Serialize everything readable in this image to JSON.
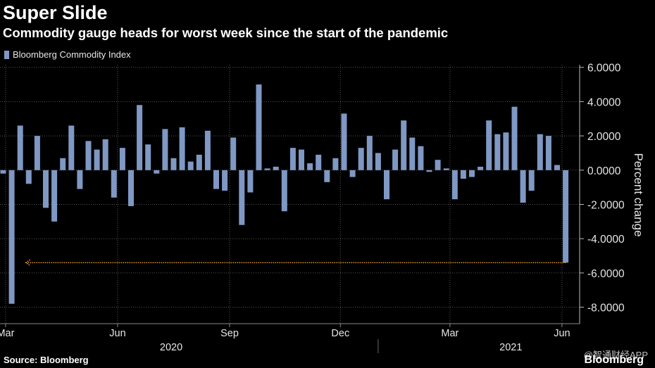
{
  "header": {
    "title": "Super Slide",
    "subtitle": "Commodity gauge heads for worst week since the start of the pandemic"
  },
  "footer": {
    "source": "Source: Bloomberg",
    "brand": "Bloomberg",
    "watermark": "@智通财经APP"
  },
  "colors": {
    "bar": "#7f98c4",
    "arrow": "#f5a623",
    "grid": "#555555",
    "background": "#000000"
  },
  "chart_data": {
    "type": "bar",
    "title": "Super Slide",
    "subtitle": "Commodity gauge heads for worst week since the start of the pandemic",
    "ylabel": "Percent change",
    "xlabel": "",
    "ylim": [
      -9,
      6.5
    ],
    "yticks": [
      6,
      4,
      2,
      0,
      -2,
      -4,
      -6,
      -8
    ],
    "ytick_labels": [
      "6.0000",
      "4.0000",
      "2.0000",
      "0.0000",
      "-2.0000",
      "-4.0000",
      "-6.0000",
      "-8.0000"
    ],
    "y_axis_side": "right",
    "grid": true,
    "legend": {
      "position": "top-left"
    },
    "x_start": "2020-02-28",
    "x_step": "1 week",
    "x_ticks": [
      {
        "label": "Mar",
        "date": "2020-03-01"
      },
      {
        "label": "Jun",
        "date": "2020-06-01"
      },
      {
        "label": "Sep",
        "date": "2020-09-01"
      },
      {
        "label": "Dec",
        "date": "2020-12-01"
      },
      {
        "label": "Mar",
        "date": "2021-03-01"
      },
      {
        "label": "Jun",
        "date": "2021-06-01"
      }
    ],
    "year_labels": [
      {
        "label": "2020",
        "date": "2020-07-15"
      },
      {
        "label": "2021",
        "date": "2021-04-20"
      }
    ],
    "series": [
      {
        "name": "Bloomberg Commodity Index",
        "values": [
          -0.2,
          -7.8,
          2.6,
          -0.8,
          2.0,
          -2.2,
          -3.0,
          0.7,
          2.6,
          -1.1,
          1.7,
          1.2,
          1.8,
          -1.6,
          1.3,
          -2.1,
          3.8,
          1.5,
          -0.2,
          2.4,
          0.7,
          2.5,
          0.5,
          0.9,
          2.3,
          -1.1,
          -1.2,
          1.9,
          -3.2,
          -1.3,
          5.0,
          0.1,
          0.2,
          -2.4,
          1.3,
          1.2,
          0.4,
          0.9,
          -0.7,
          0.7,
          3.3,
          -0.4,
          1.3,
          2.0,
          1.0,
          -1.7,
          1.2,
          2.9,
          1.9,
          1.4,
          -0.1,
          0.6,
          0.1,
          -1.7,
          -0.5,
          -0.4,
          0.2,
          2.9,
          2.1,
          2.2,
          3.7,
          -1.9,
          -1.2,
          2.1,
          2.0,
          0.3,
          -5.4
        ]
      }
    ],
    "annotation": {
      "type": "arrow",
      "y": -5.4,
      "from": "last",
      "to": "2020-03-13",
      "direction": "left"
    }
  }
}
